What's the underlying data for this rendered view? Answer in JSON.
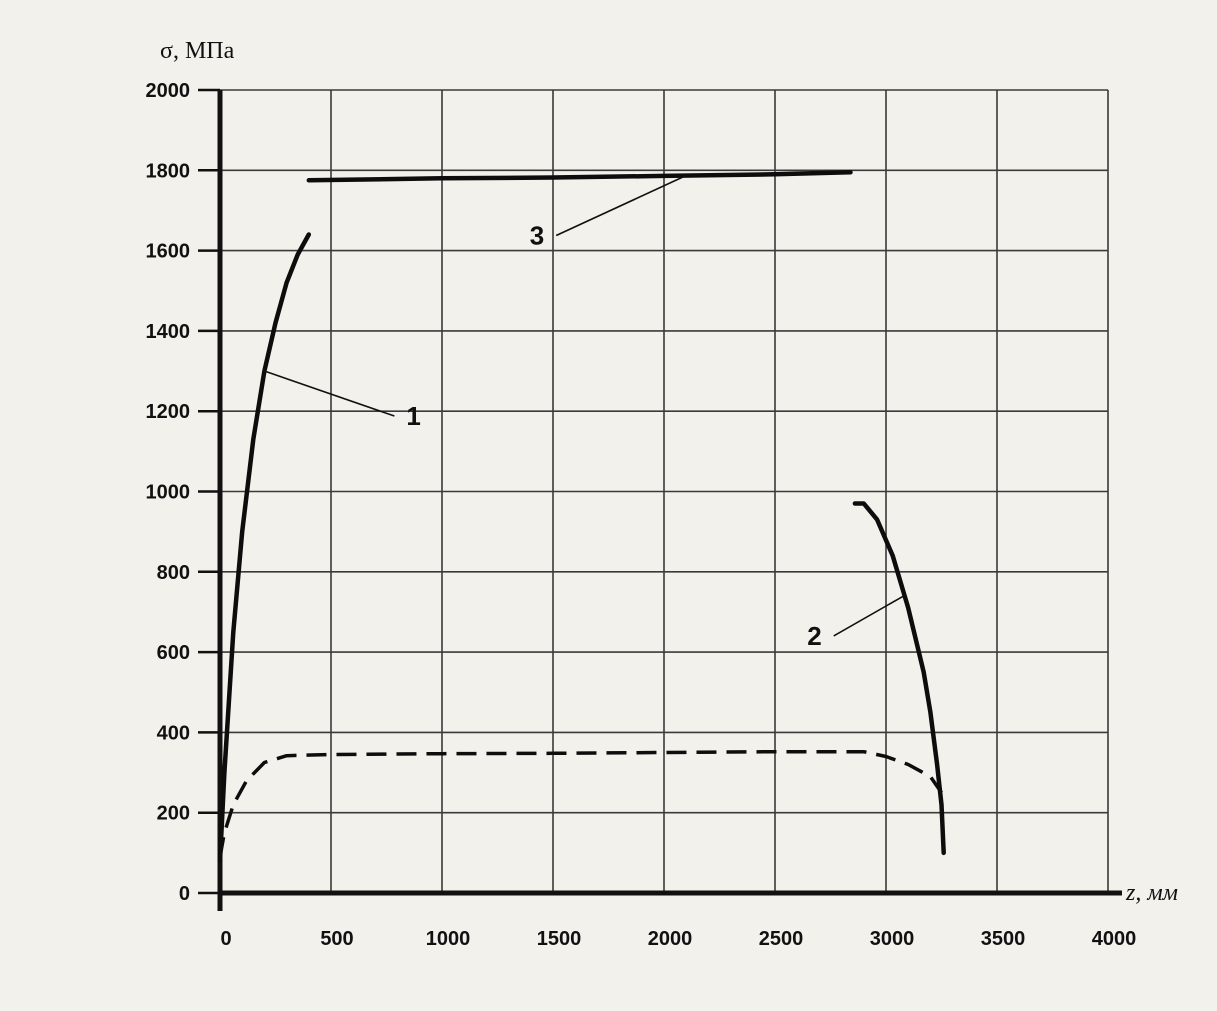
{
  "chart_data": {
    "type": "line",
    "ylabel": "σ, МПа",
    "xlabel": "z, мм",
    "xlim": [
      0,
      4000
    ],
    "ylim": [
      0,
      2000
    ],
    "x_ticks": [
      "0",
      "500",
      "1000",
      "1500",
      "2000",
      "2500",
      "3000",
      "3500",
      "4000"
    ],
    "y_ticks": [
      "0",
      "200",
      "400",
      "600",
      "800",
      "1000",
      "1200",
      "1400",
      "1600",
      "1800",
      "2000"
    ],
    "grid": true,
    "series": [
      {
        "name": "1",
        "style": "solid",
        "points": [
          [
            0,
            80
          ],
          [
            20,
            300
          ],
          [
            60,
            650
          ],
          [
            100,
            900
          ],
          [
            150,
            1130
          ],
          [
            200,
            1300
          ],
          [
            250,
            1420
          ],
          [
            300,
            1520
          ],
          [
            350,
            1590
          ],
          [
            400,
            1640
          ]
        ]
      },
      {
        "name": "2",
        "style": "solid",
        "points": [
          [
            2860,
            970
          ],
          [
            2900,
            970
          ],
          [
            2960,
            930
          ],
          [
            3030,
            840
          ],
          [
            3100,
            710
          ],
          [
            3170,
            550
          ],
          [
            3200,
            450
          ],
          [
            3230,
            320
          ],
          [
            3250,
            220
          ],
          [
            3260,
            100
          ]
        ]
      },
      {
        "name": "3",
        "style": "solid",
        "points": [
          [
            400,
            1775
          ],
          [
            1000,
            1780
          ],
          [
            1500,
            1782
          ],
          [
            2000,
            1786
          ],
          [
            2500,
            1790
          ],
          [
            2840,
            1795
          ]
        ]
      },
      {
        "name": "",
        "style": "dashed",
        "points": [
          [
            0,
            90
          ],
          [
            20,
            150
          ],
          [
            60,
            220
          ],
          [
            120,
            280
          ],
          [
            200,
            325
          ],
          [
            300,
            342
          ],
          [
            500,
            345
          ],
          [
            1000,
            347
          ],
          [
            1500,
            348
          ],
          [
            2000,
            350
          ],
          [
            2500,
            352
          ],
          [
            2900,
            352
          ],
          [
            3000,
            340
          ],
          [
            3100,
            320
          ],
          [
            3200,
            290
          ],
          [
            3250,
            250
          ]
        ]
      }
    ]
  }
}
